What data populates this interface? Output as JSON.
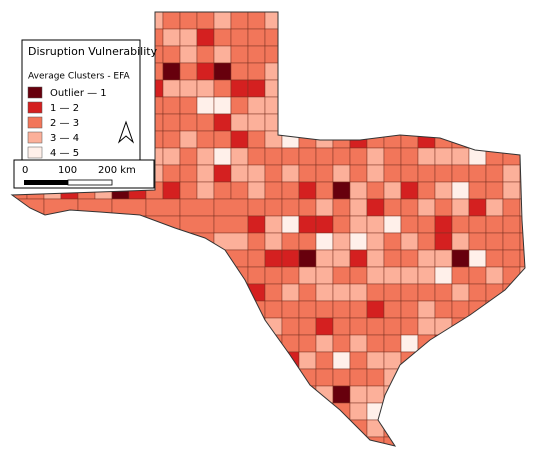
{
  "legend": {
    "title": "Disruption Vulnerability",
    "subtitle": "Average Clusters - EFA",
    "items": [
      {
        "label": "Outlier — 1",
        "color": "#67000d"
      },
      {
        "label": "1 — 2",
        "color": "#d42020"
      },
      {
        "label": "2 — 3",
        "color": "#f2765a"
      },
      {
        "label": "3 — 4",
        "color": "#fcb09a"
      },
      {
        "label": "4 — 5",
        "color": "#fff0ea"
      }
    ]
  },
  "scale_bar": {
    "labels": [
      "0",
      "100",
      "200 km"
    ]
  }
}
